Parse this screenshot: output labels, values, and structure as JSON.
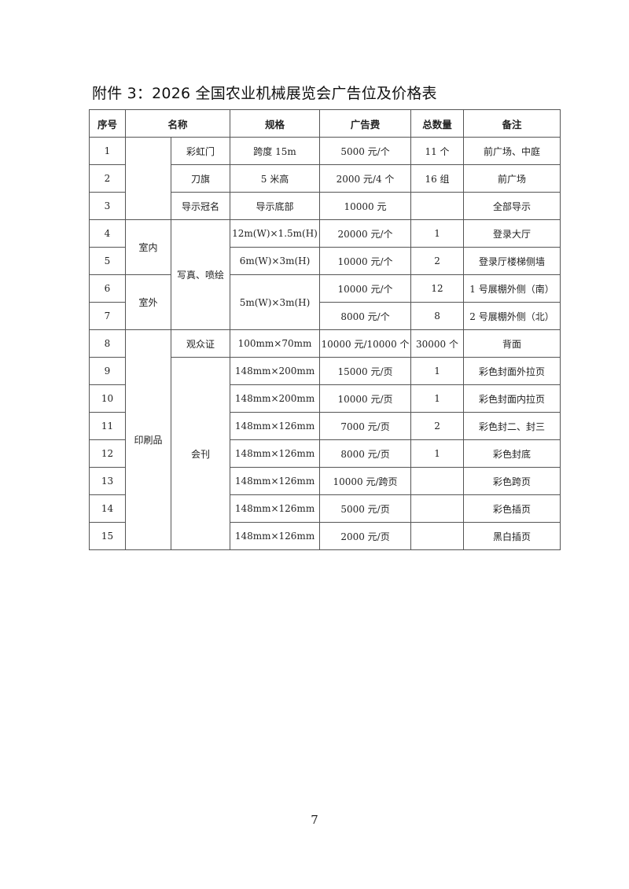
{
  "title": "附件 3：2026 全国农业机械展览会广告位及价格表",
  "headers": {
    "no": "序号",
    "name": "名称",
    "spec": "规格",
    "fee": "广告费",
    "qty": "总数量",
    "note": "备注"
  },
  "groups": {
    "indoor": "室内",
    "outdoor": "室外",
    "photo": "写真、喷绘",
    "print": "印刷品",
    "journal": "会刊"
  },
  "rows": [
    {
      "no": "1",
      "name": "彩虹门",
      "spec": "跨度 15m",
      "fee": "5000 元/个",
      "qty": "11 个",
      "note": "前广场、中庭"
    },
    {
      "no": "2",
      "name": "刀旗",
      "spec": "5 米高",
      "fee": "2000 元/4 个",
      "qty": "16 组",
      "note": "前广场"
    },
    {
      "no": "3",
      "name": "导示冠名",
      "spec": "导示底部",
      "fee": "10000 元",
      "qty": "",
      "note": "全部导示"
    },
    {
      "no": "4",
      "spec": "12m(W)×1.5m(H)",
      "fee": "20000 元/个",
      "qty": "1",
      "note": "登录大厅"
    },
    {
      "no": "5",
      "spec": "6m(W)×3m(H)",
      "fee": "10000 元/个",
      "qty": "2",
      "note": "登录厅楼梯侧墙"
    },
    {
      "no": "6",
      "spec": "5m(W)×3m(H)",
      "fee": "10000 元/个",
      "qty": "12",
      "note": "1 号展棚外侧（南）"
    },
    {
      "no": "7",
      "fee": "8000 元/个",
      "qty": "8",
      "note": "2 号展棚外侧（北）"
    },
    {
      "no": "8",
      "name": "观众证",
      "spec": "100mm×70mm",
      "fee": "10000 元/10000 个",
      "qty": "30000 个",
      "note": "背面"
    },
    {
      "no": "9",
      "spec": "148mm×200mm",
      "fee": "15000 元/页",
      "qty": "1",
      "note": "彩色封面外拉页"
    },
    {
      "no": "10",
      "spec": "148mm×200mm",
      "fee": "10000 元/页",
      "qty": "1",
      "note": "彩色封面内拉页"
    },
    {
      "no": "11",
      "spec": "148mm×126mm",
      "fee": "7000 元/页",
      "qty": "2",
      "note": "彩色封二、封三"
    },
    {
      "no": "12",
      "spec": "148mm×126mm",
      "fee": "8000 元/页",
      "qty": "1",
      "note": "彩色封底"
    },
    {
      "no": "13",
      "spec": "148mm×126mm",
      "fee": "10000 元/跨页",
      "qty": "",
      "note": "彩色跨页"
    },
    {
      "no": "14",
      "spec": "148mm×126mm",
      "fee": "5000 元/页",
      "qty": "",
      "note": "彩色插页"
    },
    {
      "no": "15",
      "spec": "148mm×126mm",
      "fee": "2000 元/页",
      "qty": "",
      "note": "黑白插页"
    }
  ],
  "page_number": "7"
}
